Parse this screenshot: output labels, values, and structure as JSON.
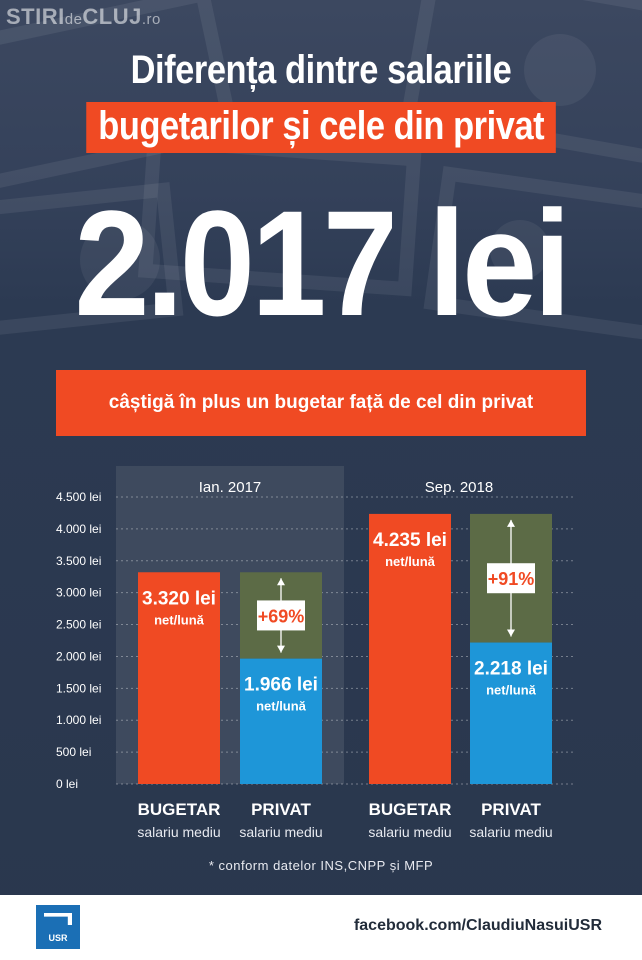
{
  "watermark": {
    "part1": "STIRI",
    "part2": "de",
    "part3": "CLUJ",
    "part4": ".ro"
  },
  "title": {
    "line1": "Diferența dintre salariile",
    "line2": "bugetarilor și cele din privat"
  },
  "headline_value": "2.017 lei",
  "banner_text": "câștigă în plus un bugetar față de cel din privat",
  "colors": {
    "bugetar": "#f04a23",
    "privat": "#1e96d8",
    "difference": "#5c6b46",
    "background": "#2c3a52",
    "highlight_panel": "#3e4a5e"
  },
  "chart_data": {
    "type": "bar",
    "ylim": [
      0,
      4500
    ],
    "yticks": [
      0,
      500,
      1000,
      1500,
      2000,
      2500,
      3000,
      3500,
      4000,
      4500
    ],
    "ytick_labels": [
      "0 lei",
      "500 lei",
      "1.000 lei",
      "1.500 lei",
      "2.000 lei",
      "2.500 lei",
      "3.000 lei",
      "3.500 lei",
      "4.000 lei",
      "4.500 lei"
    ],
    "grid": true,
    "groups": [
      {
        "period": "Ian. 2017",
        "highlighted": true,
        "bars": [
          {
            "category": "BUGETAR",
            "sub": "salariu mediu",
            "value": 3320,
            "value_label": "3.320 lei",
            "unit_label": "net/lună"
          },
          {
            "category": "PRIVAT",
            "sub": "salariu mediu",
            "value": 1966,
            "value_label": "1.966 lei",
            "unit_label": "net/lună",
            "gap_to": 3320,
            "gap_label": "+69%"
          }
        ]
      },
      {
        "period": "Sep. 2018",
        "highlighted": false,
        "bars": [
          {
            "category": "BUGETAR",
            "sub": "salariu mediu",
            "value": 4235,
            "value_label": "4.235 lei",
            "unit_label": "net/lună"
          },
          {
            "category": "PRIVAT",
            "sub": "salariu mediu",
            "value": 2218,
            "value_label": "2.218 lei",
            "unit_label": "net/lună",
            "gap_to": 4235,
            "gap_label": "+91%"
          }
        ]
      }
    ]
  },
  "footnote": "* conform datelor INS,CNPP și MFP",
  "footer": {
    "logo_text": "USR",
    "link": "facebook.com/ClaudiuNasuiUSR"
  }
}
